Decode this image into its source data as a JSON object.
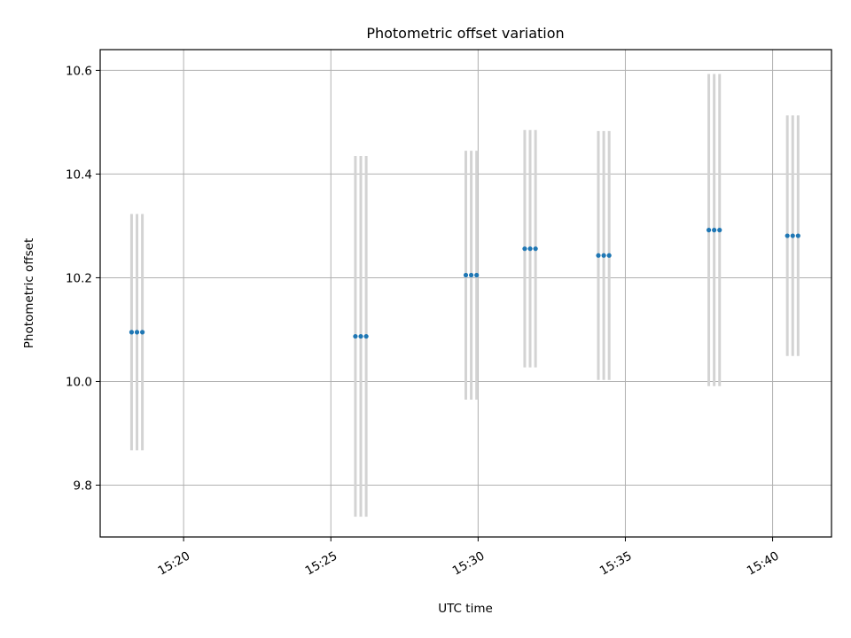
{
  "chart_data": {
    "type": "scatter",
    "title": "Photometric offset variation",
    "xlabel": "UTC time",
    "ylabel": "Photometric offset",
    "xlim": [
      "15:17:10",
      "15:42:00"
    ],
    "ylim": [
      9.7,
      10.64
    ],
    "xticks": [
      "15:20",
      "15:25",
      "15:30",
      "15:35",
      "15:40"
    ],
    "yticks": [
      9.8,
      10.0,
      10.2,
      10.4,
      10.6
    ],
    "ytick_labels": [
      "9.8",
      "10.0",
      "10.2",
      "10.4",
      "10.6"
    ],
    "grid": true,
    "series": [
      {
        "marker_color": "#1f77b4",
        "errorbar_color": "#d3d3d3",
        "points": [
          {
            "x": "15:18:14",
            "y": 10.095,
            "yerr": 0.228
          },
          {
            "x": "15:18:25",
            "y": 10.095,
            "yerr": 0.228
          },
          {
            "x": "15:18:36",
            "y": 10.095,
            "yerr": 0.228
          },
          {
            "x": "15:25:50",
            "y": 10.087,
            "yerr": 0.348
          },
          {
            "x": "15:26:01",
            "y": 10.087,
            "yerr": 0.348
          },
          {
            "x": "15:26:12",
            "y": 10.087,
            "yerr": 0.348
          },
          {
            "x": "15:29:35",
            "y": 10.205,
            "yerr": 0.24
          },
          {
            "x": "15:29:46",
            "y": 10.205,
            "yerr": 0.24
          },
          {
            "x": "15:29:57",
            "y": 10.205,
            "yerr": 0.24
          },
          {
            "x": "15:31:35",
            "y": 10.256,
            "yerr": 0.229
          },
          {
            "x": "15:31:46",
            "y": 10.256,
            "yerr": 0.229
          },
          {
            "x": "15:31:57",
            "y": 10.256,
            "yerr": 0.229
          },
          {
            "x": "15:34:05",
            "y": 10.243,
            "yerr": 0.24
          },
          {
            "x": "15:34:16",
            "y": 10.243,
            "yerr": 0.24
          },
          {
            "x": "15:34:27",
            "y": 10.243,
            "yerr": 0.24
          },
          {
            "x": "15:37:50",
            "y": 10.292,
            "yerr": 0.301
          },
          {
            "x": "15:38:01",
            "y": 10.292,
            "yerr": 0.301
          },
          {
            "x": "15:38:12",
            "y": 10.292,
            "yerr": 0.301
          },
          {
            "x": "15:40:30",
            "y": 10.281,
            "yerr": 0.232
          },
          {
            "x": "15:40:41",
            "y": 10.281,
            "yerr": 0.232
          },
          {
            "x": "15:40:52",
            "y": 10.281,
            "yerr": 0.232
          }
        ]
      }
    ]
  }
}
